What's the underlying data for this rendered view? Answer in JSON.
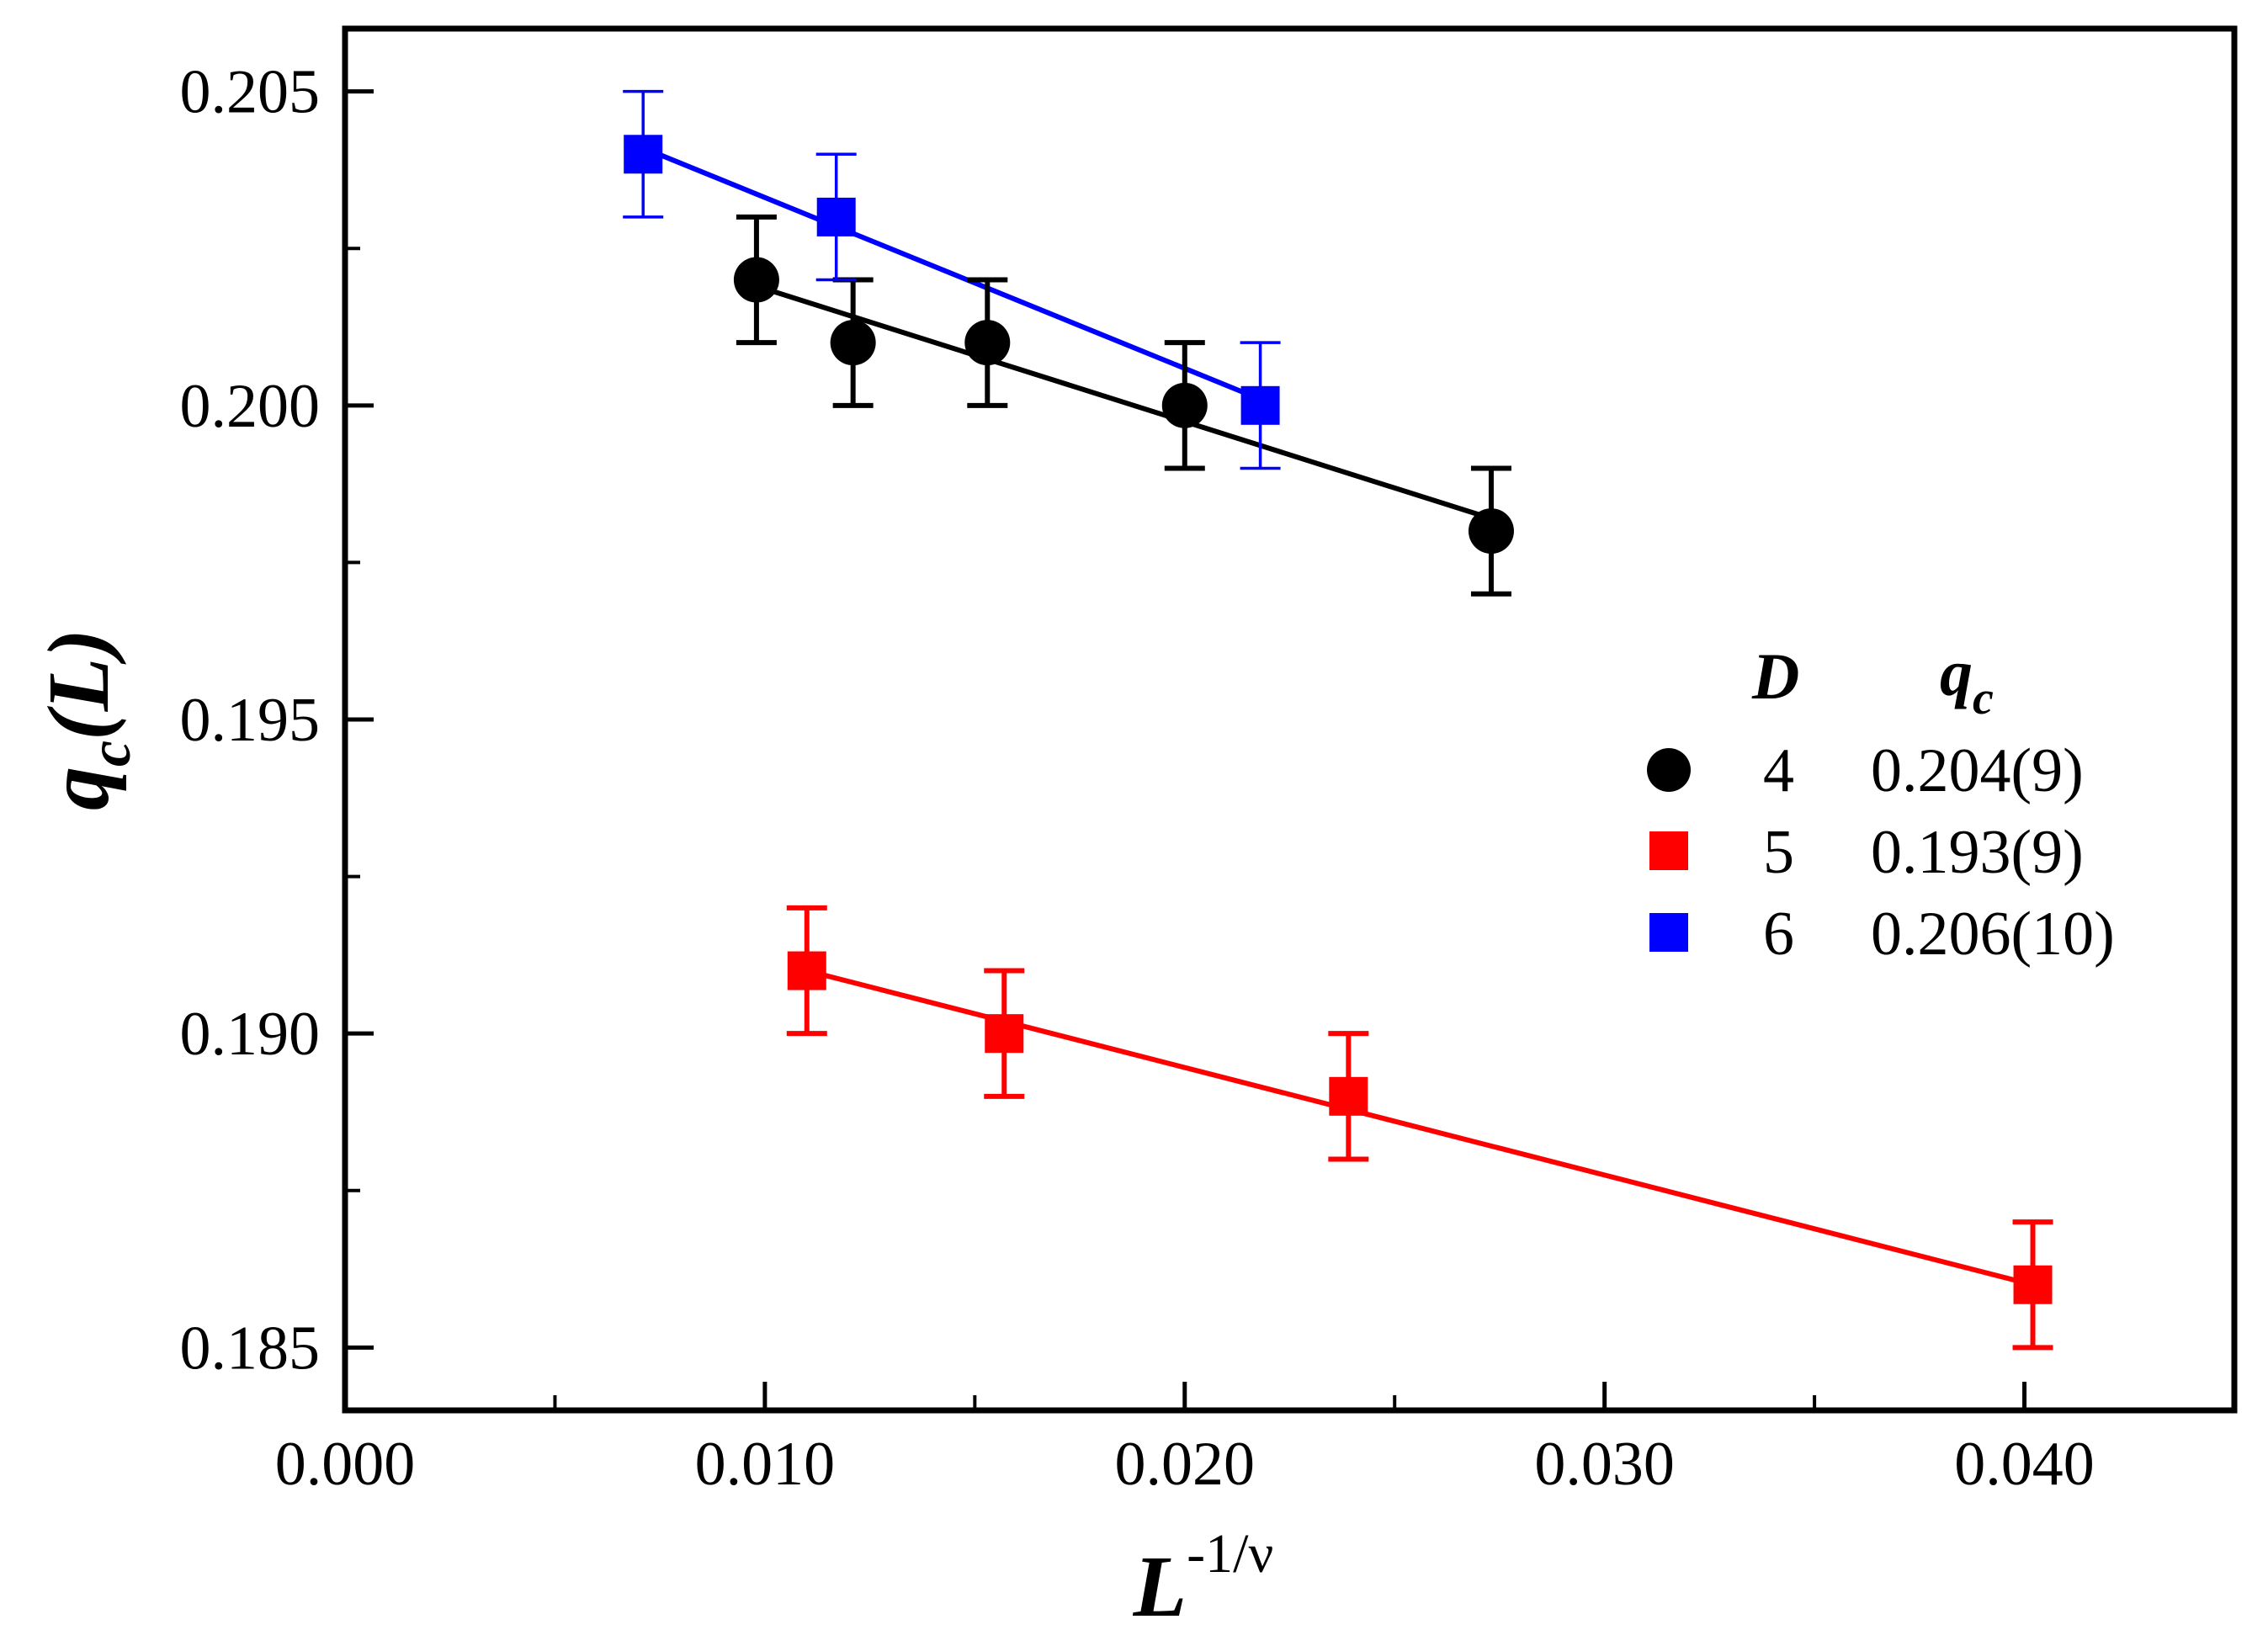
{
  "chart_data": {
    "type": "scatter",
    "title": "",
    "xlabel": {
      "base": "L",
      "exponent": "-1/ν"
    },
    "ylabel": {
      "base": "q",
      "subscript": "c",
      "suffix": "(L)"
    },
    "xlim": [
      0.0,
      0.045
    ],
    "ylim": [
      0.184,
      0.206
    ],
    "x_ticks": [
      0.0,
      0.01,
      0.02,
      0.03,
      0.04
    ],
    "x_tick_labels": [
      "0.000",
      "0.010",
      "0.020",
      "0.030",
      "0.040"
    ],
    "x_minor_ticks": [
      0.005,
      0.015,
      0.025,
      0.035
    ],
    "y_ticks": [
      0.185,
      0.19,
      0.195,
      0.2,
      0.205
    ],
    "y_tick_labels": [
      "0.185",
      "0.190",
      "0.195",
      "0.200",
      "0.205"
    ],
    "y_minor_ticks": [
      0.1875,
      0.1925,
      0.1975,
      0.2025
    ],
    "grid": false,
    "legend": {
      "position": "right",
      "header": {
        "col1": "D",
        "col2_base": "q",
        "col2_sub": "c"
      },
      "entries": [
        {
          "D": "4",
          "qc": "0.204(9)"
        },
        {
          "D": "5",
          "qc": "0.193(9)"
        },
        {
          "D": "6",
          "qc": "0.206(10)"
        }
      ]
    },
    "series": [
      {
        "name": "D=4",
        "marker": "circle",
        "color": "#000000",
        "x": [
          0.0098,
          0.0121,
          0.0153,
          0.02,
          0.0273
        ],
        "y": [
          0.202,
          0.201,
          0.201,
          0.2,
          0.198
        ],
        "yerr": [
          0.001,
          0.001,
          0.001,
          0.001,
          0.001
        ],
        "fit": {
          "x": [
            0.0098,
            0.0273
          ],
          "y": [
            0.2019,
            0.1982
          ]
        }
      },
      {
        "name": "D=5",
        "marker": "square",
        "color": "#ff0000",
        "x": [
          0.011,
          0.0157,
          0.0239,
          0.0402
        ],
        "y": [
          0.191,
          0.19,
          0.189,
          0.186
        ],
        "yerr": [
          0.001,
          0.001,
          0.001,
          0.001
        ],
        "fit": {
          "x": [
            0.011,
            0.0402
          ],
          "y": [
            0.191,
            0.186
          ]
        }
      },
      {
        "name": "D=6",
        "marker": "square",
        "color": "#0000ff",
        "x": [
          0.0071,
          0.0117,
          0.0218
        ],
        "y": [
          0.204,
          0.203,
          0.2
        ],
        "yerr": [
          0.001,
          0.001,
          0.001
        ],
        "fit": {
          "x": [
            0.0071,
            0.0218
          ],
          "y": [
            0.2041,
            0.2001
          ]
        }
      }
    ]
  }
}
